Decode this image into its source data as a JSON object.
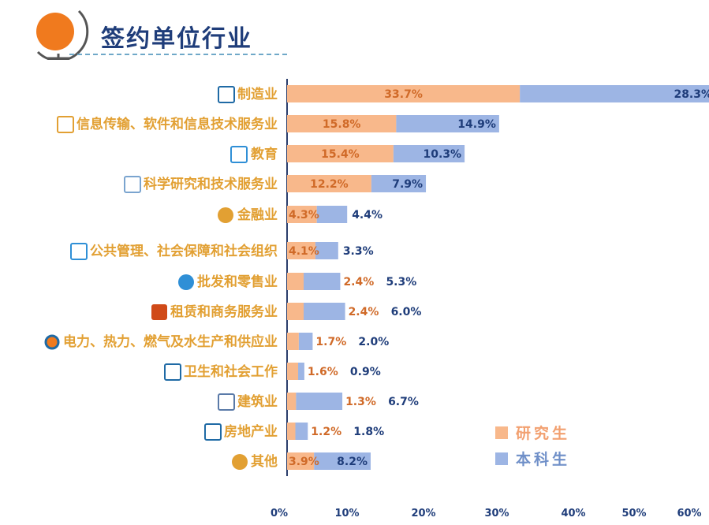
{
  "title": "签约单位行业",
  "chart_data": {
    "type": "bar",
    "stacked": true,
    "orientation": "horizontal",
    "categories": [
      "制造业",
      "信息传输、软件和信息技术服务业",
      "教育",
      "科学研究和技术服务业",
      "金融业",
      "公共管理、社会保障和社会组织",
      "批发和零售业",
      "租赁和商务服务业",
      "电力、热力、燃气及水生产和供应业",
      "卫生和社会工作",
      "建筑业",
      "房地产业",
      "其他"
    ],
    "series": [
      {
        "name": "研究生",
        "color": "#f8b88b",
        "label_color": "#d06a28",
        "values": [
          33.7,
          15.8,
          15.4,
          12.2,
          4.3,
          4.1,
          2.4,
          2.4,
          1.7,
          1.6,
          1.3,
          1.2,
          3.9
        ],
        "labels": [
          "33.7%",
          "15.8%",
          "15.4%",
          "12.2%",
          "4.3%",
          "4.1%",
          "2.4%",
          "2.4%",
          "1.7%",
          "1.6%",
          "1.3%",
          "1.2%",
          "3.9%"
        ]
      },
      {
        "name": "本科生",
        "color": "#9db5e4",
        "label_color": "#1f3d7a",
        "values": [
          28.3,
          14.9,
          10.3,
          7.9,
          4.4,
          3.3,
          5.3,
          6.0,
          2.0,
          0.9,
          6.7,
          1.8,
          8.2
        ],
        "labels": [
          "28.3%",
          "14.9%",
          "10.3%",
          "7.9%",
          "4.4%",
          "3.3%",
          "5.3%",
          "6.0%",
          "2.0%",
          "0.9%",
          "6.7%",
          "1.8%",
          "8.2%"
        ]
      }
    ],
    "xticks": [
      "0%",
      "10%",
      "20%",
      "30%",
      "40%",
      "50%",
      "60%"
    ],
    "xlim": [
      0,
      60
    ],
    "legend_position": "bottom-right",
    "icons": [
      "factory-icon",
      "cloud-upload-icon",
      "graduation-cap-icon",
      "chart-monitor-icon",
      "coins-icon",
      "people-icon",
      "shop-icon",
      "shop-sign-icon",
      "power-icon",
      "hospital-icon",
      "crane-icon",
      "buildings-icon",
      "more-icon"
    ]
  }
}
